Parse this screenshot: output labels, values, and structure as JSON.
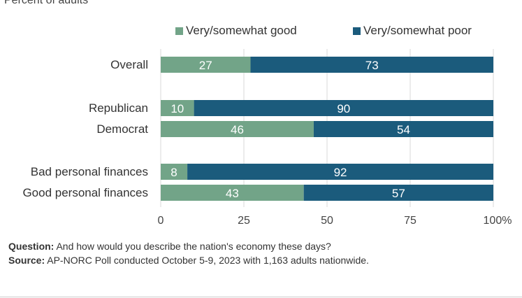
{
  "subtitle": "Percent of adults",
  "legend": [
    {
      "label": "Very/somewhat good",
      "color": "#72a488"
    },
    {
      "label": "Very/somewhat poor",
      "color": "#1b5b7c"
    }
  ],
  "chart_data": {
    "type": "bar",
    "orientation": "horizontal",
    "stacked": true,
    "categories": [
      "Overall",
      "Republican",
      "Democrat",
      "Bad personal finances",
      "Good personal finances"
    ],
    "series": [
      {
        "name": "Very/somewhat good",
        "values": [
          27,
          10,
          46,
          8,
          43
        ],
        "color": "#72a488"
      },
      {
        "name": "Very/somewhat poor",
        "values": [
          73,
          90,
          54,
          92,
          57
        ],
        "color": "#1b5b7c"
      }
    ],
    "xlim": [
      0,
      100
    ],
    "xticks": [
      "0",
      "25",
      "50",
      "75",
      "100%"
    ],
    "grid": true,
    "legend_position": "top"
  },
  "notes": {
    "question_label": "Question:",
    "question_text": " And how would you describe the nation's economy these days?",
    "source_label": "Source:",
    "source_text": " AP-NORC Poll conducted October 5-9, 2023 with 1,163 adults nationwide."
  }
}
